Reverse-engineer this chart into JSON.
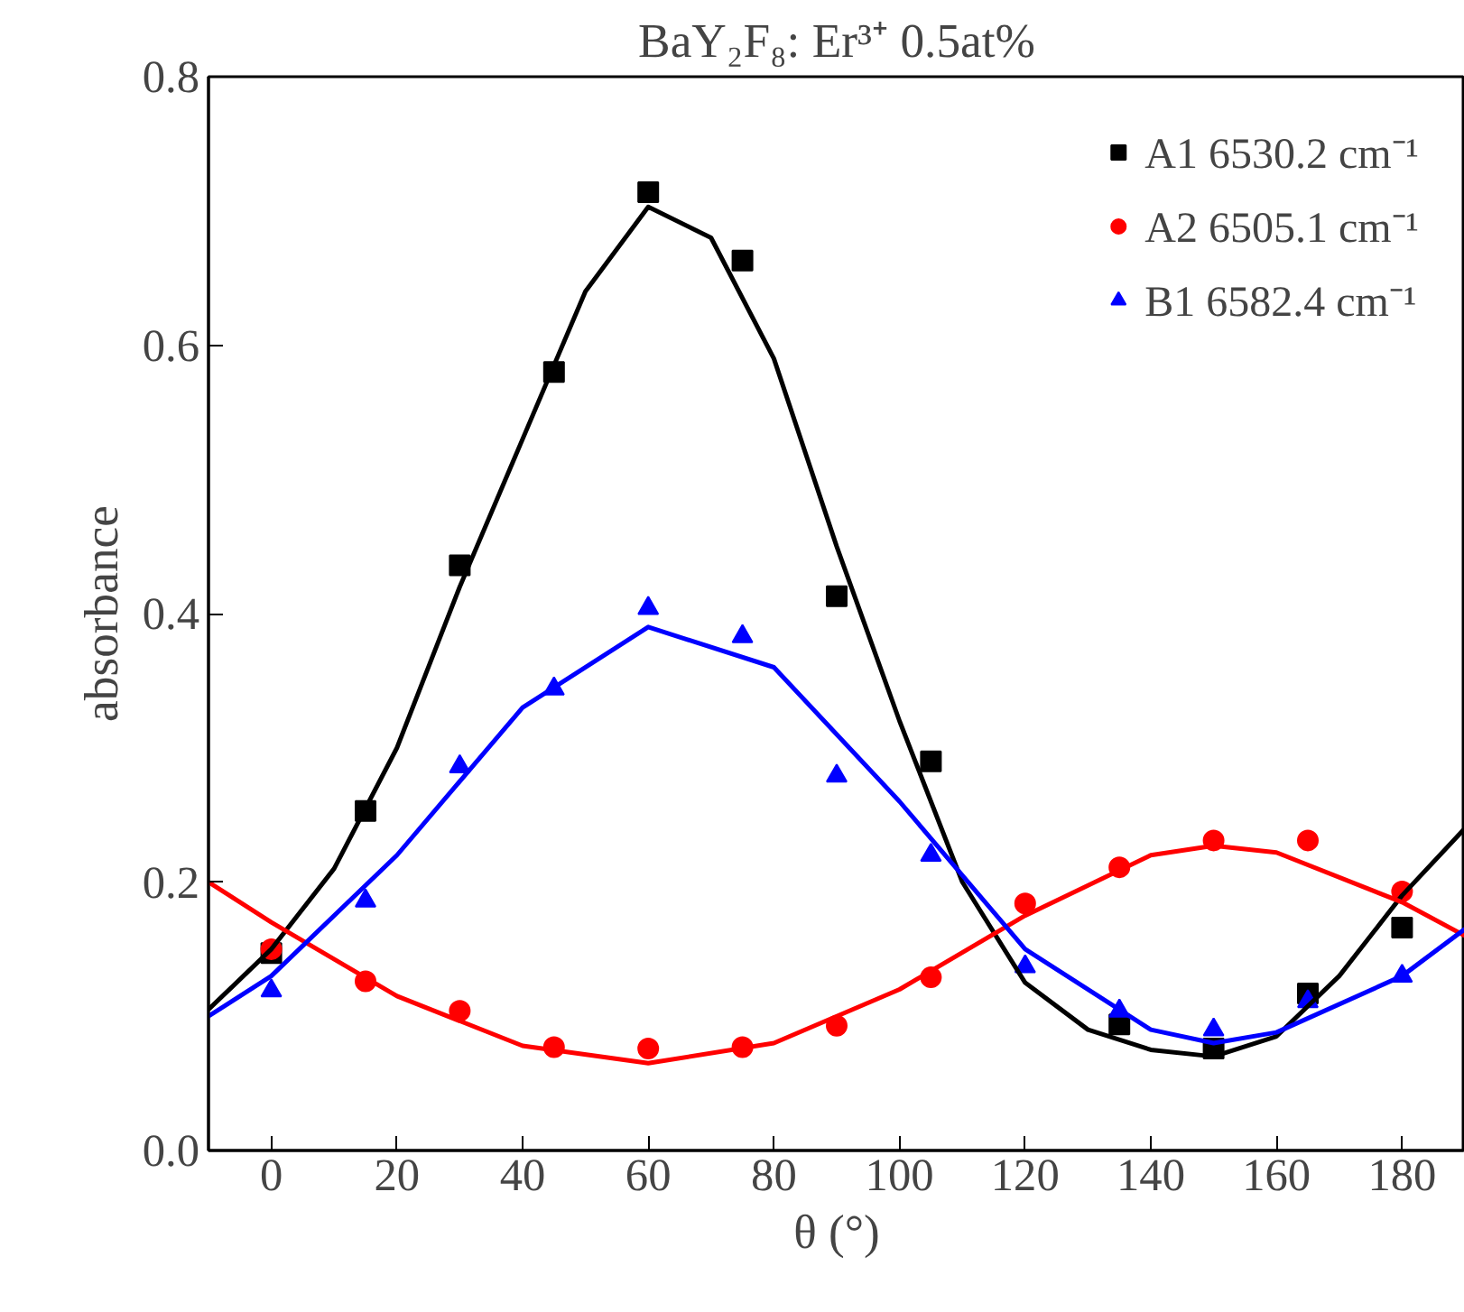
{
  "chart_data": {
    "type": "scatter",
    "title": "BaY₂F₈: Er³⁺ 0.5at%",
    "xlabel": "θ (°)",
    "ylabel": "absorbance",
    "xlim": [
      -10,
      190
    ],
    "ylim": [
      0,
      0.8
    ],
    "xticks": [
      0,
      20,
      40,
      60,
      80,
      100,
      120,
      140,
      160,
      180
    ],
    "yticks": [
      {
        "value": 0,
        "label": "0.0"
      },
      0.2,
      0.4,
      0.6,
      0.8
    ],
    "grid": false,
    "legend": "top right",
    "x": [
      0,
      15,
      30,
      45,
      60,
      75,
      90,
      105,
      120,
      135,
      150,
      165,
      180
    ],
    "series": [
      {
        "name": "A1 6530.2 cm⁻¹",
        "color": "#000000",
        "marker": "square",
        "values": [
          0.147,
          0.253,
          0.436,
          0.58,
          0.714,
          0.663,
          0.413,
          0.29,
          null,
          0.094,
          0.076,
          0.117,
          0.166
        ]
      },
      {
        "name": "A2 6505.1 cm⁻¹",
        "color": "#ff0000",
        "marker": "circle",
        "values": [
          0.15,
          0.126,
          0.104,
          0.077,
          0.076,
          0.077,
          0.093,
          0.129,
          0.184,
          0.211,
          0.231,
          0.231,
          0.193
        ]
      },
      {
        "name": "B1 6582.4 cm⁻¹",
        "color": "#0000ff",
        "marker": "triangle",
        "values": [
          0.119,
          0.186,
          0.286,
          0.344,
          0.404,
          0.383,
          0.279,
          0.22,
          0.137,
          0.104,
          0.09,
          0.111,
          0.13
        ]
      },
      {
        "type": "line",
        "color": "#000000",
        "marker": "none",
        "x": [
          -10,
          0,
          10,
          20,
          30,
          40,
          50,
          60,
          70,
          80,
          90,
          100,
          110,
          120,
          130,
          140,
          150,
          160,
          170,
          180,
          190
        ],
        "values": [
          0.105,
          0.15,
          0.21,
          0.3,
          0.42,
          0.53,
          0.64,
          0.703,
          0.68,
          0.59,
          0.45,
          0.32,
          0.2,
          0.125,
          0.09,
          0.075,
          0.07,
          0.085,
          0.13,
          0.19,
          0.24
        ]
      },
      {
        "type": "line",
        "color": "#ff0000",
        "marker": "none",
        "x": [
          -10,
          0,
          20,
          40,
          60,
          80,
          100,
          120,
          140,
          150,
          160,
          180,
          190
        ],
        "values": [
          0.2,
          0.17,
          0.115,
          0.078,
          0.065,
          0.08,
          0.12,
          0.175,
          0.22,
          0.227,
          0.222,
          0.185,
          0.16
        ]
      },
      {
        "type": "line",
        "color": "#0000ff",
        "marker": "none",
        "x": [
          -10,
          0,
          20,
          40,
          60,
          80,
          100,
          120,
          140,
          150,
          160,
          180,
          190
        ],
        "values": [
          0.1,
          0.13,
          0.22,
          0.33,
          0.39,
          0.36,
          0.26,
          0.15,
          0.09,
          0.08,
          0.088,
          0.13,
          0.165
        ]
      }
    ]
  }
}
